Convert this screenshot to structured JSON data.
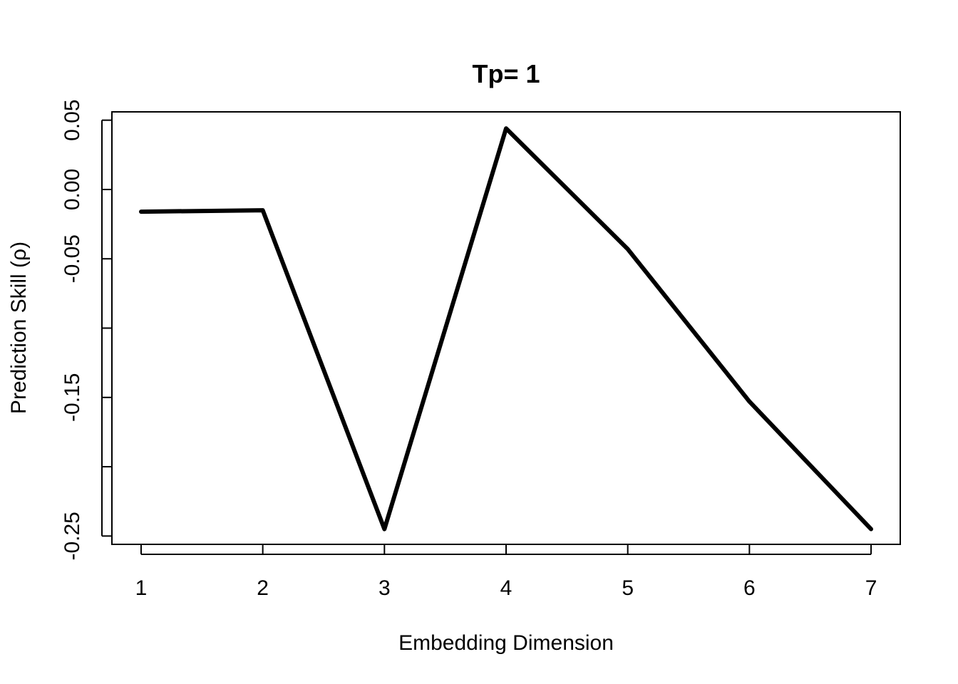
{
  "chart_data": {
    "type": "line",
    "title": "Tp= 1",
    "xlabel": "Embedding Dimension",
    "ylabel": "Prediction Skill (ρ)",
    "x": [
      1,
      2,
      3,
      4,
      5,
      6,
      7
    ],
    "series": [
      {
        "values": [
          -0.016,
          -0.015,
          -0.245,
          0.044,
          -0.043,
          -0.153,
          -0.245
        ]
      }
    ],
    "xlim": [
      0.76,
      7.24
    ],
    "ylim": [
      -0.256,
      0.056
    ],
    "x_ticks": [
      {
        "value": 1,
        "label": "1"
      },
      {
        "value": 2,
        "label": "2"
      },
      {
        "value": 3,
        "label": "3"
      },
      {
        "value": 4,
        "label": "4"
      },
      {
        "value": 5,
        "label": "5"
      },
      {
        "value": 6,
        "label": "6"
      },
      {
        "value": 7,
        "label": "7"
      }
    ],
    "y_ticks": [
      {
        "value": 0.05,
        "label": "0.05"
      },
      {
        "value": 0.0,
        "label": "0.00"
      },
      {
        "value": -0.05,
        "label": "-0.05"
      },
      {
        "value": -0.1,
        "label": ""
      },
      {
        "value": -0.15,
        "label": "-0.15"
      },
      {
        "value": -0.2,
        "label": ""
      },
      {
        "value": -0.25,
        "label": "-0.25"
      }
    ],
    "grid": false,
    "line_color": "#000000"
  }
}
